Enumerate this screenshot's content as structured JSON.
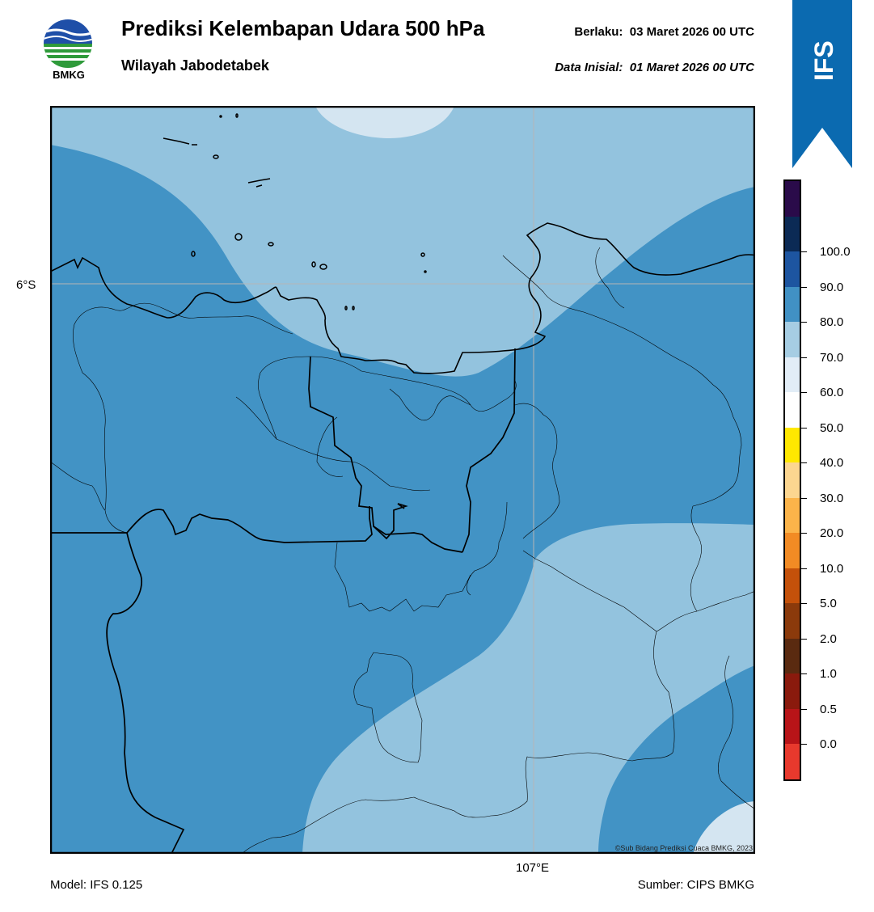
{
  "header": {
    "logo_text": "BMKG",
    "title": "Prediksi Kelembapan Udara 500 hPa",
    "subtitle": "Wilayah Jabodetabek",
    "valid_label": "Berlaku:",
    "valid_value": "03 Maret 2026 00 UTC",
    "init_label": "Data Inisial:",
    "init_value": "01 Maret 2026 00 UTC",
    "ribbon_text": "IFS"
  },
  "map": {
    "lat_label": "6°S",
    "lon_label": "107°E",
    "copyright": "©Sub Bidang Prediksi Cuaca BMKG, 2023",
    "fill_colors": {
      "50-60": "#d4e5f1",
      "60-70": "#93c3de",
      "70-80": "#4293c5"
    }
  },
  "colorbar": {
    "levels": [
      "0.0",
      "0.5",
      "1.0",
      "2.0",
      "5.0",
      "10.0",
      "20.0",
      "30.0",
      "40.0",
      "50.0",
      "60.0",
      "70.0",
      "80.0",
      "90.0",
      "100.0"
    ],
    "colors": [
      "#e8392d",
      "#b81418",
      "#8a1a0d",
      "#5a2a10",
      "#8b3a0b",
      "#c4510a",
      "#f28b24",
      "#fbb44a",
      "#fcd690",
      "#ffe800",
      "#ffffff",
      "#e2edf7",
      "#a6cde3",
      "#4191c4",
      "#1d55a0",
      "#0b2a55",
      "#2a0b4a"
    ]
  },
  "footer": {
    "model": "Model: IFS 0.125",
    "source": "Sumber: CIPS BMKG"
  },
  "colors": {
    "ribbon": "#0b6ab0",
    "ocean_grid": "#b5b5b5"
  }
}
